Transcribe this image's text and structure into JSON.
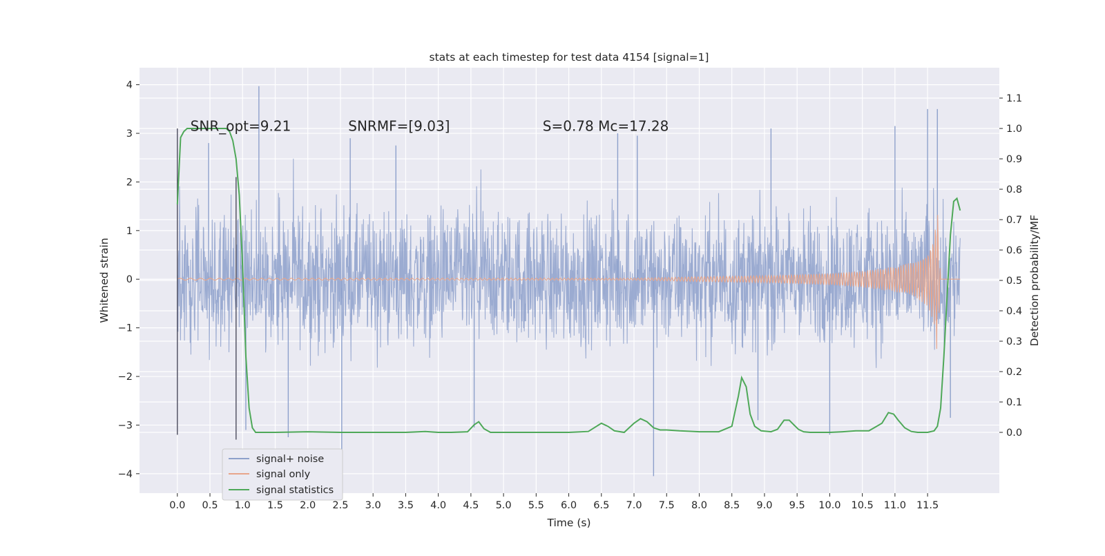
{
  "chart_data": {
    "type": "line",
    "title": "stats at each timestep for test data 4154 [signal=1]",
    "xlabel": "Time (s)",
    "ylabel_left": "Whitened strain",
    "ylabel_right": "Detection probability/MF",
    "xlim": [
      -0.58,
      12.6
    ],
    "ylim_left": [
      -4.4,
      4.35
    ],
    "ylim_right": [
      -0.2,
      1.2
    ],
    "x_ticks": [
      0.0,
      0.5,
      1.0,
      1.5,
      2.0,
      2.5,
      3.0,
      3.5,
      4.0,
      4.5,
      5.0,
      5.5,
      6.0,
      6.5,
      7.0,
      7.5,
      8.0,
      8.5,
      9.0,
      9.5,
      10.0,
      10.5,
      11.0,
      11.5
    ],
    "x_tick_labels": [
      "0.0",
      "0.5",
      "1.0",
      "1.5",
      "2.0",
      "2.5",
      "3.0",
      "3.5",
      "4.0",
      "4.5",
      "5.0",
      "5.5",
      "6.0",
      "6.5",
      "7.0",
      "7.5",
      "8.0",
      "8.5",
      "9.0",
      "9.5",
      "10.0",
      "10.5",
      "11.0",
      "11.5"
    ],
    "y_left_ticks": [
      4,
      3,
      2,
      1,
      0,
      -1,
      -2,
      -3,
      -4
    ],
    "y_left_tick_labels": [
      "4",
      "3",
      "2",
      "1",
      "0",
      "−1",
      "−2",
      "−3",
      "−4"
    ],
    "y_right_ticks": [
      1.1,
      1.0,
      0.9,
      0.8,
      0.7,
      0.6,
      0.5,
      0.4,
      0.3,
      0.2,
      0.1,
      0.0
    ],
    "y_right_tick_labels": [
      "1.1",
      "1.0",
      "0.9",
      "0.8",
      "0.7",
      "0.6",
      "0.5",
      "0.4",
      "0.3",
      "0.2",
      "0.1",
      "0.0"
    ],
    "grid": true,
    "legend_position": "lower-left",
    "annotations": [
      {
        "text": "SNR_opt=9.21",
        "x": 0.2,
        "y": 3.05
      },
      {
        "text": "SNRMF=[9.03]",
        "x": 2.62,
        "y": 3.05
      },
      {
        "text": "S=0.78   Mc=17.28",
        "x": 5.6,
        "y": 3.05
      }
    ],
    "vertical_markers": [
      {
        "x": 0.0,
        "ymin": -3.2,
        "ymax": 3.1
      },
      {
        "x": 0.9,
        "ymin": -3.3,
        "ymax": 2.1
      }
    ],
    "series": [
      {
        "name": "signal+ noise",
        "axis": "left",
        "color": "#8da0cb",
        "style": "dense noise, typical range ±1.9, occasional spikes",
        "x_range": [
          0.0,
          12.0
        ],
        "envelope": {
          "upper": 1.9,
          "lower": -1.9
        },
        "spikes": [
          {
            "x": 0.48,
            "y": 2.8
          },
          {
            "x": 1.05,
            "y": -3.1
          },
          {
            "x": 1.25,
            "y": 3.97
          },
          {
            "x": 1.7,
            "y": -3.25
          },
          {
            "x": 2.52,
            "y": -3.6
          },
          {
            "x": 2.65,
            "y": 2.9
          },
          {
            "x": 3.35,
            "y": 2.75
          },
          {
            "x": 4.55,
            "y": -3.05
          },
          {
            "x": 6.75,
            "y": 3.0
          },
          {
            "x": 7.05,
            "y": 2.95
          },
          {
            "x": 7.3,
            "y": -4.05
          },
          {
            "x": 8.9,
            "y": -2.9
          },
          {
            "x": 9.1,
            "y": 3.1
          },
          {
            "x": 10.0,
            "y": -3.2
          },
          {
            "x": 11.0,
            "y": 3.15
          },
          {
            "x": 11.5,
            "y": 3.5
          },
          {
            "x": 11.65,
            "y": 3.5
          },
          {
            "x": 11.85,
            "y": -2.85
          }
        ]
      },
      {
        "name": "signal only",
        "axis": "left",
        "color": "#e8a58a",
        "style": "chirp: near zero until ~7.0 s, grows to ±1.6 at ~11.65 s, then ends",
        "x": [
          7.0,
          8.0,
          9.0,
          10.0,
          10.5,
          11.0,
          11.3,
          11.5,
          11.6,
          11.65,
          11.7
        ],
        "amplitude": [
          0.02,
          0.05,
          0.07,
          0.12,
          0.17,
          0.26,
          0.36,
          0.55,
          0.9,
          1.6,
          0.0
        ]
      },
      {
        "name": "signal statistics",
        "axis": "right",
        "color": "#4ea858",
        "x": [
          0.0,
          0.05,
          0.1,
          0.15,
          0.2,
          0.3,
          0.4,
          0.5,
          0.6,
          0.7,
          0.75,
          0.8,
          0.85,
          0.9,
          0.95,
          1.0,
          1.05,
          1.1,
          1.15,
          1.2,
          1.5,
          2.0,
          2.5,
          3.0,
          3.5,
          3.8,
          4.0,
          4.2,
          4.45,
          4.55,
          4.62,
          4.7,
          4.8,
          5.0,
          5.5,
          6.0,
          6.3,
          6.5,
          6.6,
          6.7,
          6.85,
          7.0,
          7.1,
          7.2,
          7.3,
          7.4,
          7.5,
          7.7,
          8.0,
          8.3,
          8.5,
          8.6,
          8.65,
          8.72,
          8.78,
          8.85,
          8.95,
          9.1,
          9.2,
          9.3,
          9.38,
          9.45,
          9.52,
          9.6,
          9.7,
          9.85,
          10.0,
          10.2,
          10.4,
          10.6,
          10.8,
          10.9,
          10.98,
          11.05,
          11.15,
          11.25,
          11.35,
          11.5,
          11.6,
          11.65,
          11.7,
          11.75,
          11.8,
          11.85,
          11.9,
          11.95,
          12.0
        ],
        "values": [
          0.75,
          0.97,
          0.99,
          1.0,
          1.0,
          1.0,
          1.0,
          1.0,
          1.0,
          1.0,
          1.0,
          0.99,
          0.96,
          0.9,
          0.78,
          0.55,
          0.25,
          0.08,
          0.015,
          0.0,
          0.0,
          0.002,
          0.0,
          0.0,
          0.0,
          0.003,
          0.0,
          0.0,
          0.002,
          0.025,
          0.035,
          0.012,
          0.0,
          0.0,
          0.0,
          0.0,
          0.003,
          0.03,
          0.02,
          0.005,
          0.0,
          0.03,
          0.045,
          0.035,
          0.015,
          0.008,
          0.008,
          0.005,
          0.002,
          0.002,
          0.02,
          0.12,
          0.18,
          0.15,
          0.06,
          0.02,
          0.005,
          0.002,
          0.01,
          0.04,
          0.04,
          0.025,
          0.01,
          0.002,
          0.0,
          0.0,
          0.0,
          0.002,
          0.005,
          0.005,
          0.03,
          0.065,
          0.06,
          0.04,
          0.015,
          0.003,
          0.0,
          0.0,
          0.005,
          0.02,
          0.08,
          0.25,
          0.45,
          0.65,
          0.76,
          0.77,
          0.73
        ]
      }
    ]
  },
  "legend": [
    {
      "label": "signal+ noise",
      "color": "#8da0cb"
    },
    {
      "label": "signal only",
      "color": "#e8a58a"
    },
    {
      "label": "signal statistics",
      "color": "#4ea858"
    }
  ]
}
